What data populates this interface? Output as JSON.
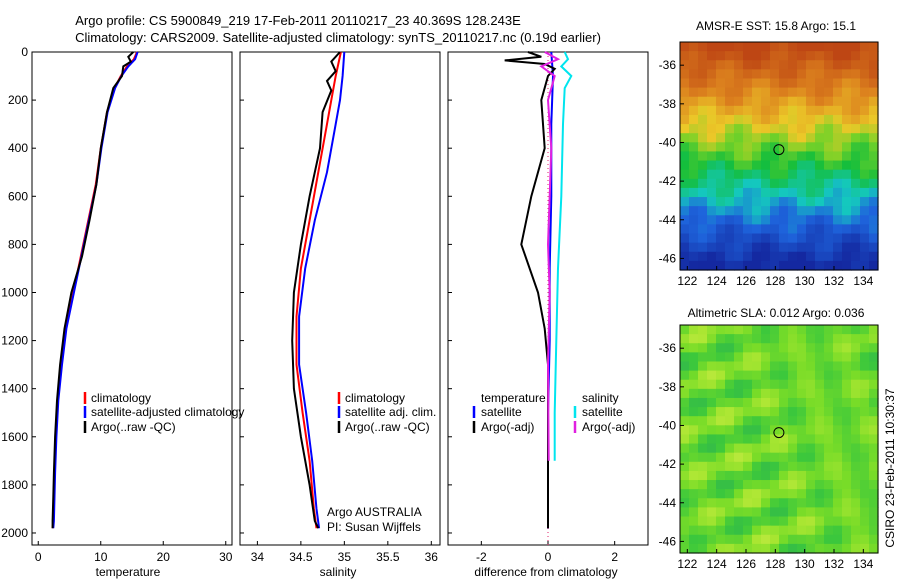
{
  "header": {
    "line1": "Argo profile: CS 5900849_219 17-Feb-2011 20110217_23 40.369S 128.243E",
    "line2": "Climatology: CARS2009. Satellite-adjusted climatology: synTS_20110217.nc (0.19d earlier)"
  },
  "side_label": "CSIRO 23-Feb-2011 10:30:37",
  "colors": {
    "climatology": "#ff0000",
    "satellite": "#0000ff",
    "argo": "#000000",
    "sal_satellite": "#00e5ee",
    "sal_argo": "#e020e0"
  },
  "chart_data": [
    {
      "id": "temperature",
      "type": "line",
      "xlabel": "temperature",
      "xlim": [
        -1,
        31
      ],
      "ylim": [
        0,
        2050
      ],
      "y_reversed": true,
      "xticks": [
        0,
        10,
        20,
        30
      ],
      "yticks": [
        0,
        200,
        400,
        600,
        800,
        1000,
        1200,
        1400,
        1600,
        1800,
        2000
      ],
      "legend": [
        "climatology",
        "satellite-adjusted climatology",
        "Argo(..raw -QC)"
      ],
      "series": [
        {
          "name": "climatology",
          "color": "#ff0000",
          "x": [
            15.8,
            15.3,
            14.2,
            13.2,
            12.2,
            11.0,
            10.0,
            9.2,
            8.0,
            6.8,
            5.6,
            4.4,
            3.7,
            3.1,
            2.8,
            2.6,
            2.5,
            2.4,
            2.3
          ],
          "y": [
            0,
            30,
            60,
            100,
            150,
            250,
            400,
            550,
            700,
            850,
            1000,
            1150,
            1300,
            1450,
            1600,
            1750,
            1850,
            1950,
            1980
          ]
        },
        {
          "name": "satellite-adjusted climatology",
          "color": "#0000ff",
          "x": [
            15.9,
            15.5,
            14.4,
            13.3,
            12.3,
            11.1,
            10.1,
            9.3,
            8.1,
            6.9,
            5.7,
            4.5,
            3.8,
            3.2,
            2.9,
            2.7,
            2.6,
            2.5,
            2.4
          ],
          "y": [
            0,
            30,
            60,
            100,
            150,
            250,
            400,
            550,
            700,
            850,
            1000,
            1150,
            1300,
            1450,
            1600,
            1750,
            1850,
            1950,
            1980
          ]
        },
        {
          "name": "Argo(..raw -QC)",
          "color": "#000000",
          "x": [
            15.2,
            14.4,
            14.8,
            13.6,
            13.4,
            12.0,
            11.0,
            10.0,
            9.3,
            8.2,
            7.0,
            5.3,
            4.2,
            3.5,
            3.0,
            2.7,
            2.5,
            2.4,
            2.3,
            2.3
          ],
          "y": [
            0,
            20,
            40,
            60,
            100,
            150,
            250,
            400,
            550,
            700,
            850,
            1000,
            1150,
            1300,
            1450,
            1600,
            1750,
            1850,
            1950,
            1980
          ]
        }
      ]
    },
    {
      "id": "salinity",
      "type": "line",
      "xlabel": "salinity",
      "xlim": [
        33.8,
        36.1
      ],
      "ylim": [
        0,
        2050
      ],
      "y_reversed": true,
      "xticks": [
        34,
        34.5,
        35,
        35.5,
        36
      ],
      "legend": [
        "climatology",
        "satellite adj. clim.",
        "Argo(..raw -QC)"
      ],
      "annotation": [
        "Argo AUSTRALIA",
        "PI: Susan Wijffels"
      ],
      "series": [
        {
          "name": "climatology",
          "color": "#ff0000",
          "x": [
            34.96,
            34.9,
            34.85,
            34.8,
            34.7,
            34.6,
            34.5,
            34.45,
            34.45,
            34.52,
            34.6,
            34.65,
            34.68
          ],
          "y": [
            0,
            100,
            200,
            300,
            500,
            700,
            900,
            1100,
            1300,
            1500,
            1700,
            1900,
            1980
          ]
        },
        {
          "name": "satellite adj. clim.",
          "color": "#0000ff",
          "x": [
            35.0,
            34.98,
            34.95,
            34.9,
            34.8,
            34.66,
            34.55,
            34.48,
            34.48,
            34.56,
            34.63,
            34.68,
            34.71
          ],
          "y": [
            0,
            100,
            200,
            300,
            500,
            700,
            900,
            1100,
            1300,
            1500,
            1700,
            1900,
            1980
          ]
        },
        {
          "name": "Argo(..raw -QC)",
          "color": "#000000",
          "x": [
            34.95,
            34.85,
            34.9,
            34.8,
            34.85,
            34.75,
            34.72,
            34.6,
            34.5,
            34.42,
            34.4,
            34.42,
            34.5,
            34.6,
            34.66,
            34.7
          ],
          "y": [
            0,
            40,
            80,
            120,
            160,
            250,
            400,
            600,
            800,
            1000,
            1200,
            1400,
            1600,
            1800,
            1950,
            1980
          ]
        }
      ]
    },
    {
      "id": "difference",
      "type": "line",
      "xlabel": "difference from climatology",
      "xlim": [
        -3,
        3
      ],
      "ylim": [
        0,
        2050
      ],
      "y_reversed": true,
      "xticks": [
        -2,
        0,
        2
      ],
      "legend_headers": [
        "temperature",
        "salinity"
      ],
      "legend": [
        "satellite",
        "Argo(-adj)",
        "satellite",
        "Argo(-adj)"
      ],
      "series": [
        {
          "name": "temperature satellite",
          "color": "#0000ff",
          "x": [
            0.1,
            0.15,
            0.1,
            0.1,
            0.05,
            0.05,
            0.0,
            0.0,
            0.0
          ],
          "y": [
            0,
            100,
            300,
            600,
            900,
            1200,
            1500,
            1800,
            1980
          ]
        },
        {
          "name": "temperature Argo(-adj)",
          "color": "#000000",
          "x": [
            -0.6,
            -0.2,
            -1.3,
            -0.1,
            0.2,
            0.0,
            -0.2,
            -0.1,
            -0.5,
            -0.8,
            -0.3,
            -0.1,
            0.0,
            0.0,
            0.0
          ],
          "y": [
            0,
            20,
            35,
            50,
            70,
            100,
            200,
            400,
            600,
            800,
            1000,
            1150,
            1300,
            1600,
            1980
          ]
        },
        {
          "name": "salinity satellite",
          "color": "#00e5ee",
          "x": [
            0.5,
            0.6,
            0.4,
            0.7,
            0.5,
            0.45,
            0.4,
            0.3,
            0.25,
            0.2,
            0.2
          ],
          "y": [
            0,
            30,
            60,
            100,
            150,
            300,
            600,
            900,
            1200,
            1500,
            1700
          ]
        },
        {
          "name": "salinity Argo(-adj)",
          "color": "#e020e0",
          "x": [
            -0.1,
            0.3,
            -0.2,
            0.2,
            0.0,
            0.1,
            0.05,
            0.0,
            0.05,
            0.0,
            0.02
          ],
          "y": [
            0,
            30,
            60,
            100,
            200,
            400,
            600,
            800,
            1000,
            1300,
            1700
          ]
        }
      ]
    },
    {
      "id": "sst_map",
      "type": "heatmap",
      "title": "AMSR-E SST: 15.8 Argo: 15.1",
      "xlim": [
        121.5,
        135
      ],
      "ylim": [
        -46.6,
        -34.8
      ],
      "xticks": [
        122,
        124,
        126,
        128,
        130,
        132,
        134
      ],
      "yticks": [
        -36,
        -38,
        -40,
        -42,
        -44,
        -46
      ],
      "argo_position": {
        "lon": 128.243,
        "lat": -40.369
      }
    },
    {
      "id": "sla_map",
      "type": "heatmap",
      "title": "Altimetric SLA: 0.012 Argo: 0.036",
      "xlim": [
        121.5,
        135
      ],
      "ylim": [
        -46.6,
        -34.8
      ],
      "xticks": [
        122,
        124,
        126,
        128,
        130,
        132,
        134
      ],
      "yticks": [
        -36,
        -38,
        -40,
        -42,
        -44,
        -46
      ],
      "argo_position": {
        "lon": 128.243,
        "lat": -40.369
      }
    }
  ]
}
